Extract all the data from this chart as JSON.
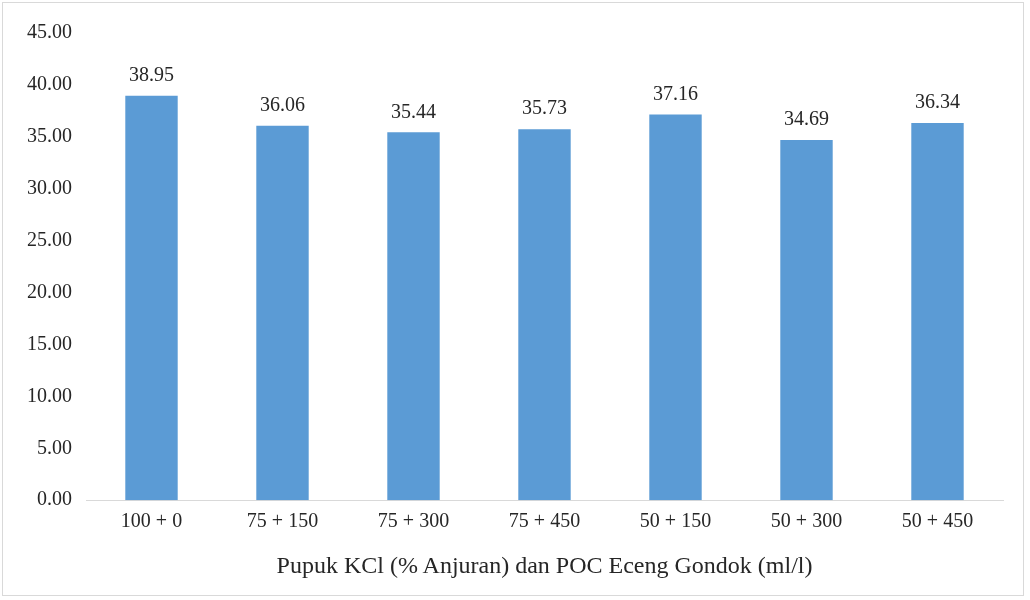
{
  "chart_data": {
    "type": "bar",
    "xlabel": "Pupuk KCl (% Anjuran) dan POC Eceng Gondok (ml/l)",
    "categories": [
      "100 + 0",
      "75 + 150",
      "75 + 300",
      "75 + 450",
      "50 + 150",
      "50 + 300",
      "50 + 450"
    ],
    "values": [
      38.95,
      36.06,
      35.44,
      35.73,
      37.16,
      34.69,
      36.34
    ],
    "color": "#5b9bd5",
    "ylim": [
      0,
      45
    ],
    "yticks": [
      {
        "value": 0,
        "label": "0.00"
      },
      {
        "value": 5,
        "label": "5.00"
      },
      {
        "value": 10,
        "label": "10.00"
      },
      {
        "value": 15,
        "label": "15.00"
      },
      {
        "value": 20,
        "label": "20.00"
      },
      {
        "value": 25,
        "label": "25.00"
      },
      {
        "value": 30,
        "label": "30.00"
      },
      {
        "value": 35,
        "label": "35.00"
      },
      {
        "value": 40,
        "label": "40.00"
      },
      {
        "value": 45,
        "label": "45.00"
      }
    ],
    "data_labels": true,
    "grid": false,
    "legend": false
  }
}
